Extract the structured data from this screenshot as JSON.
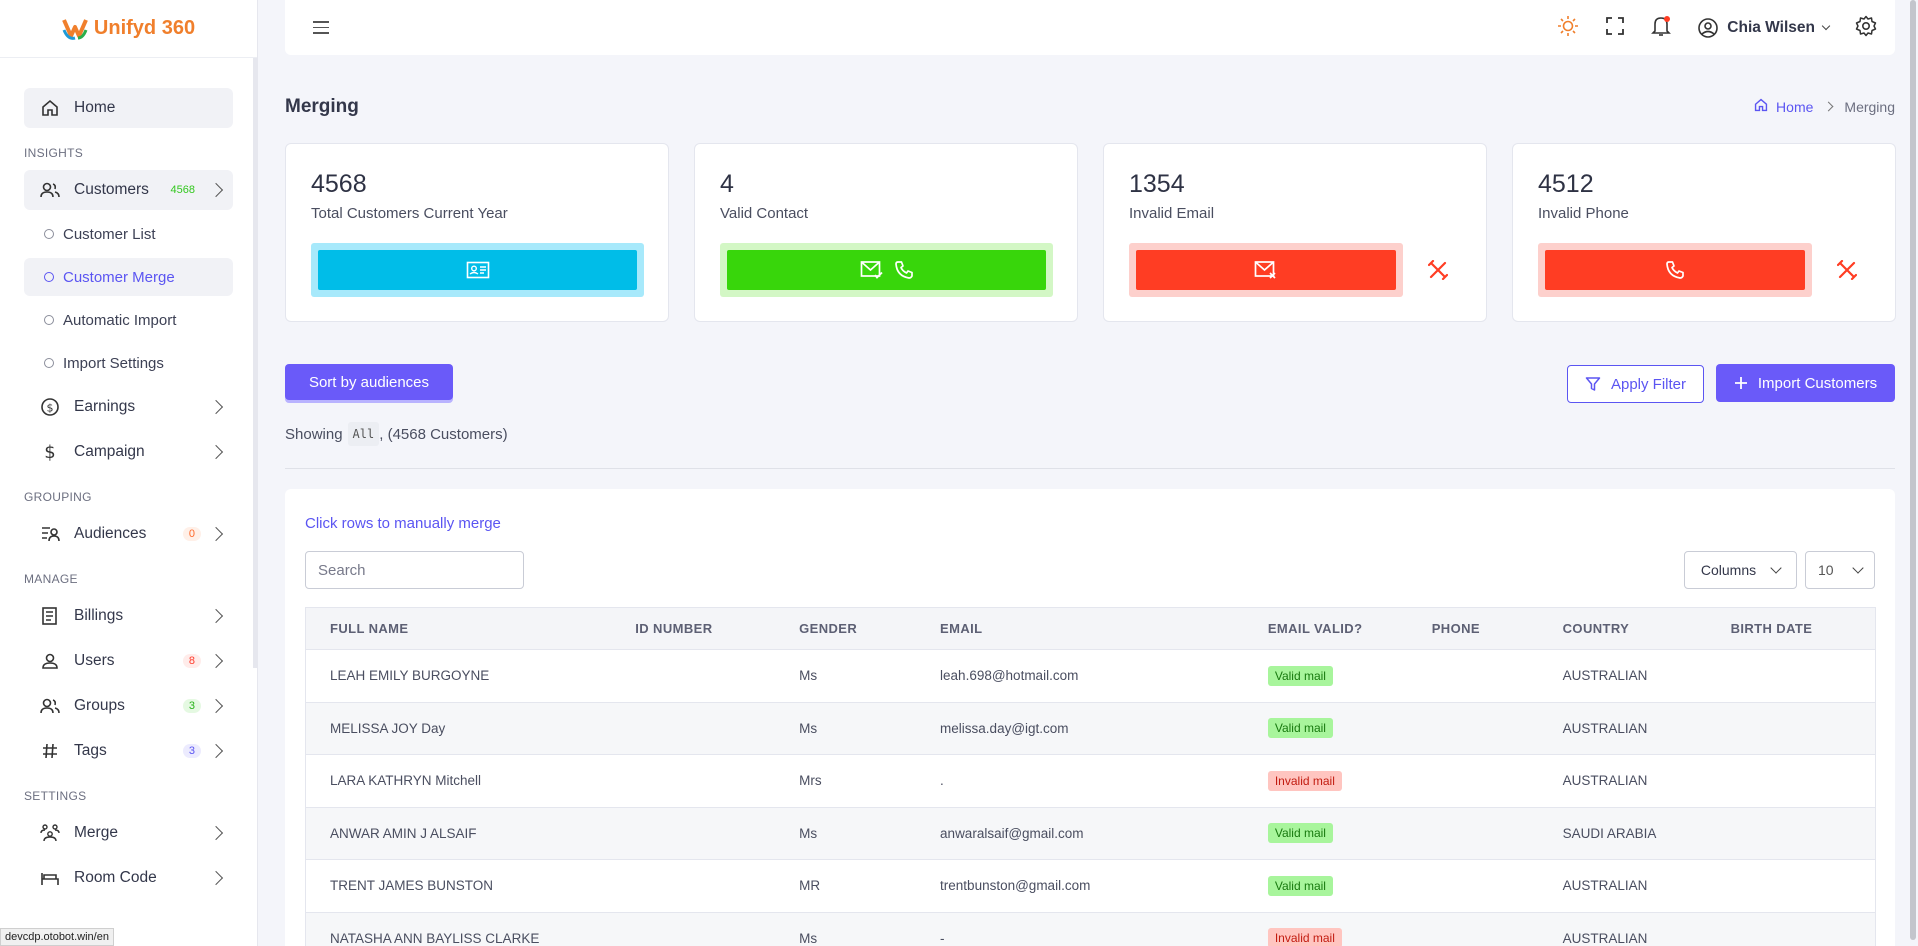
{
  "app": {
    "name": "Unifyd 360"
  },
  "sidebar": {
    "home": "Home",
    "insights_title": "INSIGHTS",
    "customers": {
      "label": "Customers",
      "count": "4568"
    },
    "customer_subitems": [
      "Customer List",
      "Customer Merge",
      "Automatic Import",
      "Import Settings"
    ],
    "earnings": "Earnings",
    "campaign": "Campaign",
    "grouping_title": "GROUPING",
    "audiences": {
      "label": "Audiences",
      "count": "0"
    },
    "manage_title": "MANAGE",
    "billings": "Billings",
    "users": {
      "label": "Users",
      "count": "8"
    },
    "groups": {
      "label": "Groups",
      "count": "3"
    },
    "tags": {
      "label": "Tags",
      "count": "3"
    },
    "settings_title": "SETTINGS",
    "merge": "Merge",
    "room_code": "Room Code"
  },
  "status_url": "devcdp.otobot.win/en",
  "topbar": {
    "user_name": "Chia Wilsen"
  },
  "page": {
    "title": "Merging",
    "breadcrumb": [
      "Home",
      "Merging"
    ]
  },
  "stats": [
    {
      "value": "4568",
      "caption": "Total Customers Current Year",
      "color": "#00bde8"
    },
    {
      "value": "4",
      "caption": "Valid Contact",
      "color": "#38d60b"
    },
    {
      "value": "1354",
      "caption": "Invalid Email",
      "color": "#ff3d23"
    },
    {
      "value": "4512",
      "caption": "Invalid Phone",
      "color": "#ff3d23"
    }
  ],
  "actions": {
    "sort": "Sort by audiences",
    "filter": "Apply Filter",
    "import": "Import Customers",
    "showing_prefix": "Showing",
    "showing_filter": "All",
    "showing_suffix": ", (4568 Customers)"
  },
  "table": {
    "hint": "Click rows to manually merge",
    "search_placeholder": "Search",
    "columns_label": "Columns",
    "per_page": "10",
    "headers": [
      "FULL NAME",
      "ID NUMBER",
      "GENDER",
      "EMAIL",
      "EMAIL VALID?",
      "PHONE",
      "COUNTRY",
      "BIRTH DATE"
    ],
    "rows": [
      {
        "name": "LEAH EMILY BURGOYNE",
        "id": "",
        "gender": "Ms",
        "email": "leah.698@hotmail.com",
        "valid": "Valid mail",
        "ok": true,
        "phone": "",
        "country": "AUSTRALIAN",
        "birth": ""
      },
      {
        "name": "MELISSA JOY Day",
        "id": "",
        "gender": "Ms",
        "email": "melissa.day@igt.com",
        "valid": "Valid mail",
        "ok": true,
        "phone": "",
        "country": "AUSTRALIAN",
        "birth": ""
      },
      {
        "name": "LARA KATHRYN Mitchell",
        "id": "",
        "gender": "Mrs",
        "email": ".",
        "valid": "Invalid mail",
        "ok": false,
        "phone": "",
        "country": "AUSTRALIAN",
        "birth": ""
      },
      {
        "name": "ANWAR AMIN J ALSAIF",
        "id": "",
        "gender": "Ms",
        "email": "anwaralsaif@gmail.com",
        "valid": "Valid mail",
        "ok": true,
        "phone": "",
        "country": "SAUDI ARABIA",
        "birth": ""
      },
      {
        "name": "TRENT JAMES BUNSTON",
        "id": "",
        "gender": "MR",
        "email": "trentbunston@gmail.com",
        "valid": "Valid mail",
        "ok": true,
        "phone": "",
        "country": "AUSTRALIAN",
        "birth": ""
      },
      {
        "name": "NATASHA ANN BAYLISS CLARKE",
        "id": "",
        "gender": "Ms",
        "email": "-",
        "valid": "Invalid mail",
        "ok": false,
        "phone": "",
        "country": "AUSTRALIAN",
        "birth": ""
      }
    ]
  }
}
